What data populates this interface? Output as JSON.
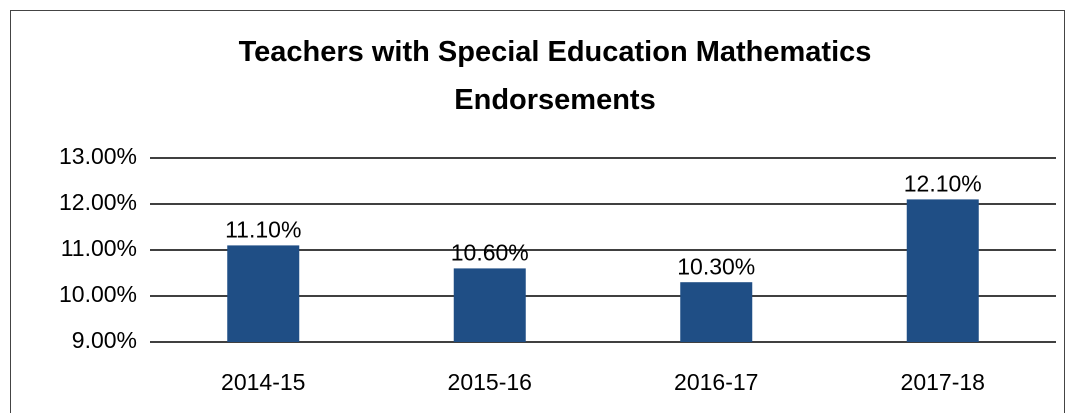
{
  "chart_data": {
    "type": "bar",
    "title": "Teachers with Special Education Mathematics Endorsements",
    "categories": [
      "2014-15",
      "2015-16",
      "2016-17",
      "2017-18"
    ],
    "values": [
      11.1,
      10.6,
      10.3,
      12.1
    ],
    "value_labels": [
      "11.10%",
      "10.60%",
      "10.30%",
      "12.10%"
    ],
    "color": "#1f4e85",
    "ylim": [
      9,
      13
    ],
    "yticks": [
      {
        "value": 9,
        "label": "9.00%"
      },
      {
        "value": 10,
        "label": "10.00%"
      },
      {
        "value": 11,
        "label": "11.00%"
      },
      {
        "value": 12,
        "label": "12.00%"
      },
      {
        "value": 13,
        "label": "13.00%"
      }
    ],
    "grid": true
  }
}
